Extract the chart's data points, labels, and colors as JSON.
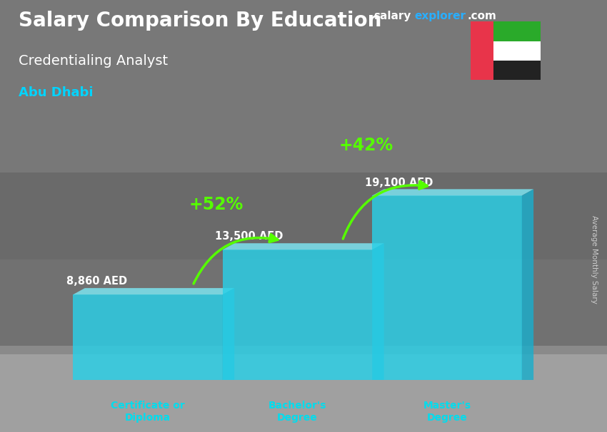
{
  "title_main": "Salary Comparison By Education",
  "title_sub": "Credentialing Analyst",
  "title_location": "Abu Dhabi",
  "ylabel_rotated": "Average Monthly Salary",
  "categories": [
    "Certificate or\nDiploma",
    "Bachelor's\nDegree",
    "Master's\nDegree"
  ],
  "values": [
    8860,
    13500,
    19100
  ],
  "value_labels": [
    "8,860 AED",
    "13,500 AED",
    "19,100 AED"
  ],
  "pct_labels": [
    "+52%",
    "+42%"
  ],
  "bar_face_color": "#29d0e8",
  "bar_top_color": "#7de8f5",
  "bar_side_color": "#1aaecc",
  "bar_alpha": 0.82,
  "arrow_color": "#55ff00",
  "pct_color": "#aaff00",
  "title_color": "#ffffff",
  "sub_color": "#ffffff",
  "loc_color": "#00d4ff",
  "value_color": "#ffffff",
  "cat_color": "#00ddee",
  "brand_salary_color": "#ffffff",
  "brand_explorer_color": "#29aeff",
  "brand_com_color": "#ffffff",
  "bg_photo_color": "#7a7a7a",
  "figsize": [
    8.5,
    6.06
  ],
  "dpi": 100,
  "flag_red": "#e8344a",
  "flag_green": "#2aaa2a",
  "flag_white": "#ffffff",
  "flag_black": "#222222"
}
